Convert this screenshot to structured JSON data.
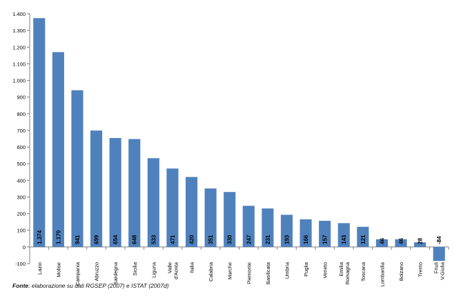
{
  "chart_data": {
    "type": "bar",
    "categories": [
      "Lazio",
      "Molise",
      "Campania",
      "Abruzzo",
      "Sardegna",
      "Sicilia",
      "Liguria",
      "Valle d'Aosta",
      "Italia",
      "Calabria",
      "Marche",
      "Piemonte",
      "Basilicata",
      "Umbria",
      "Puglia",
      "Veneto",
      "Emilia Romagna",
      "Toscana",
      "Lombardia",
      "Bolzano",
      "Trento",
      "Friuli V.Giulia"
    ],
    "category_lines": [
      [
        "Lazio"
      ],
      [
        "Molise"
      ],
      [
        "Campania"
      ],
      [
        "Abruzzo"
      ],
      [
        "Sardegna"
      ],
      [
        "Sicilia"
      ],
      [
        "Liguria"
      ],
      [
        "Valle",
        "d'Aosta"
      ],
      [
        "Italia"
      ],
      [
        "Calabria"
      ],
      [
        "Marche"
      ],
      [
        "Piemonte"
      ],
      [
        "Basilicata"
      ],
      [
        "Umbria"
      ],
      [
        "Puglia"
      ],
      [
        "Veneto"
      ],
      [
        "Emilia",
        "Romagna"
      ],
      [
        "Toscana"
      ],
      [
        "Lombardia"
      ],
      [
        "Bolzano"
      ],
      [
        "Trento"
      ],
      [
        "Friuli",
        "V.Giulia"
      ]
    ],
    "values": [
      1374,
      1170,
      941,
      699,
      654,
      648,
      533,
      471,
      420,
      351,
      330,
      247,
      231,
      193,
      166,
      157,
      143,
      121,
      46,
      46,
      28,
      -84
    ],
    "data_labels": [
      "1.374",
      "1.170",
      "941",
      "699",
      "654",
      "648",
      "533",
      "471",
      "420",
      "351",
      "330",
      "247",
      "231",
      "193",
      "166",
      "157",
      "143",
      "121",
      "46",
      "46",
      "28",
      "-84"
    ],
    "ylim": [
      -100,
      1400
    ],
    "yticks": [
      -100,
      0,
      100,
      200,
      300,
      400,
      500,
      600,
      700,
      800,
      900,
      1000,
      1100,
      1200,
      1300,
      1400
    ],
    "ytick_labels": [
      "-100",
      "0",
      "100",
      "200",
      "300",
      "400",
      "500",
      "600",
      "700",
      "800",
      "900",
      "1.000",
      "1.100",
      "1.200",
      "1.300",
      "1.400"
    ],
    "grid": false,
    "legend": "none",
    "bar_color": "#4F81BD"
  },
  "source": {
    "lead": "Fonte",
    "text": ": elaborazione su dati RGSEP (2007) e ISTAT (2007d)"
  }
}
